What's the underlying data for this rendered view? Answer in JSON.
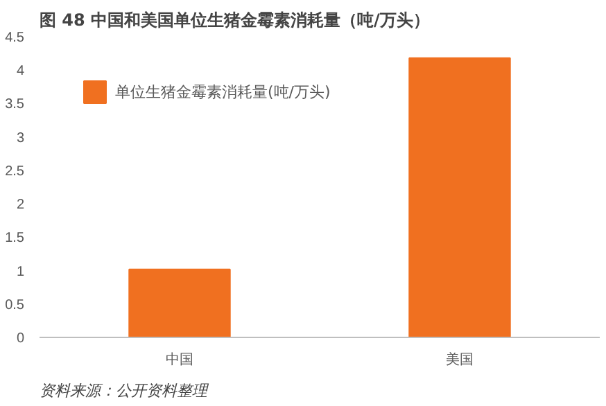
{
  "chart_data": {
    "type": "bar",
    "title": "图 48 中国和美国单位生猪金霉素消耗量（吨/万头）",
    "categories": [
      "中国",
      "美国"
    ],
    "series": [
      {
        "name": "单位生猪金霉素消耗量(吨/万头)",
        "color": "#f07020",
        "values": [
          1.02,
          4.18
        ]
      }
    ],
    "ylim": [
      0,
      4.5
    ],
    "yticks": [
      0,
      0.5,
      1,
      1.5,
      2,
      2.5,
      3,
      3.5,
      4,
      4.5
    ],
    "grid": false,
    "legend": "top",
    "annotations": [
      "资料来源：公开资料整理"
    ]
  }
}
